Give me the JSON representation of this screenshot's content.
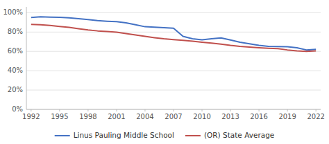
{
  "chart_data": {
    "type": "line",
    "x": [
      1992,
      1993,
      1994,
      1995,
      1996,
      1997,
      1998,
      1999,
      2000,
      2001,
      2002,
      2003,
      2004,
      2005,
      2006,
      2007,
      2008,
      2009,
      2010,
      2011,
      2012,
      2013,
      2014,
      2015,
      2016,
      2017,
      2018,
      2019,
      2020,
      2021,
      2022
    ],
    "series": [
      {
        "name": "Linus Pauling Middle School",
        "color": "#4472c4",
        "values": [
          0.95,
          0.958,
          0.955,
          0.952,
          0.947,
          0.938,
          0.93,
          0.918,
          0.912,
          0.908,
          0.895,
          0.875,
          0.855,
          0.85,
          0.845,
          0.84,
          0.755,
          0.73,
          0.72,
          0.73,
          0.74,
          0.718,
          0.695,
          0.678,
          0.663,
          0.652,
          0.65,
          0.648,
          0.638,
          0.615,
          0.622
        ]
      },
      {
        "name": "(OR) State Average",
        "color": "#c0504d",
        "values": [
          0.88,
          0.875,
          0.868,
          0.858,
          0.848,
          0.835,
          0.822,
          0.812,
          0.805,
          0.798,
          0.785,
          0.77,
          0.755,
          0.742,
          0.73,
          0.722,
          0.715,
          0.705,
          0.695,
          0.685,
          0.675,
          0.662,
          0.652,
          0.645,
          0.638,
          0.632,
          0.628,
          0.615,
          0.606,
          0.6,
          0.605
        ]
      }
    ],
    "xlim": [
      1991.5,
      2022.5
    ],
    "xticks": [
      1992,
      1995,
      1998,
      2001,
      2004,
      2007,
      2010,
      2013,
      2016,
      2019,
      2022
    ],
    "ylim": [
      0,
      1.06
    ],
    "yticks": [
      {
        "value": 0,
        "label": "0%"
      },
      {
        "value": 0.2,
        "label": "20%"
      },
      {
        "value": 0.4,
        "label": "40%"
      },
      {
        "value": 0.6,
        "label": "60%"
      },
      {
        "value": 0.8,
        "label": "80%"
      },
      {
        "value": 1,
        "label": "100%"
      }
    ],
    "grid": true,
    "legend": "bottom"
  }
}
